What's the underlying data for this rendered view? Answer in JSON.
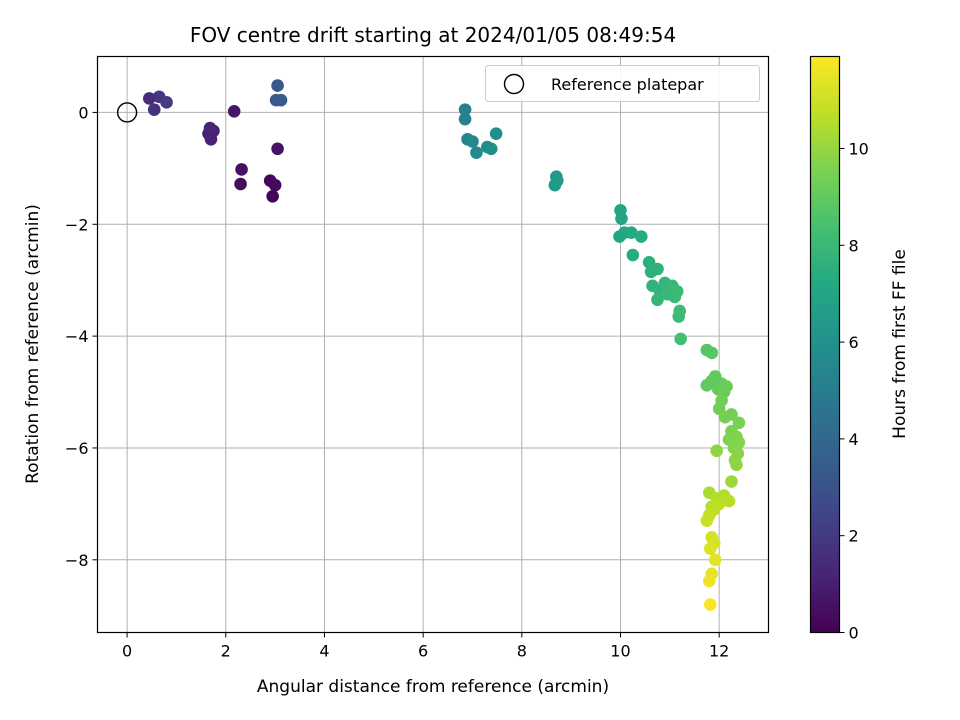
{
  "chart_data": {
    "type": "scatter",
    "title": "FOV centre drift starting at 2024/01/05 08:49:54",
    "xlabel": "Angular distance from reference (arcmin)",
    "ylabel": "Rotation from reference (arcmin)",
    "xlim": [
      -0.6,
      13.0
    ],
    "ylim": [
      -9.3,
      1.0
    ],
    "xticks": [
      "0",
      "2",
      "4",
      "6",
      "8",
      "10",
      "12"
    ],
    "yticks": [
      "0",
      "−2",
      "−4",
      "−6",
      "−8"
    ],
    "grid": true,
    "legend": {
      "position": "top-right",
      "label": "Reference platepar",
      "marker": "open-circle"
    },
    "reference_point": {
      "x": 0,
      "y": 0
    },
    "colorbar": {
      "label": "Hours from first FF file",
      "colormap": "viridis",
      "range": [
        0,
        11.9
      ],
      "ticks": [
        "0",
        "2",
        "4",
        "6",
        "8",
        "10"
      ]
    },
    "points": [
      {
        "x": 2.95,
        "y": -1.5,
        "h": 0.1
      },
      {
        "x": 2.9,
        "y": -1.22,
        "h": 0.2
      },
      {
        "x": 3.0,
        "y": -1.3,
        "h": 0.3
      },
      {
        "x": 2.3,
        "y": -1.28,
        "h": 0.4
      },
      {
        "x": 2.32,
        "y": -1.02,
        "h": 0.5
      },
      {
        "x": 3.05,
        "y": -0.65,
        "h": 0.6
      },
      {
        "x": 2.17,
        "y": 0.02,
        "h": 0.7
      },
      {
        "x": 1.65,
        "y": -0.38,
        "h": 0.9
      },
      {
        "x": 1.75,
        "y": -0.33,
        "h": 1.0
      },
      {
        "x": 1.7,
        "y": -0.48,
        "h": 1.1
      },
      {
        "x": 1.68,
        "y": -0.28,
        "h": 1.2
      },
      {
        "x": 0.45,
        "y": 0.25,
        "h": 1.5
      },
      {
        "x": 0.55,
        "y": 0.05,
        "h": 1.7
      },
      {
        "x": 0.65,
        "y": 0.28,
        "h": 1.9
      },
      {
        "x": 0.8,
        "y": 0.18,
        "h": 2.1
      },
      {
        "x": 3.05,
        "y": 0.48,
        "h": 3.2
      },
      {
        "x": 3.02,
        "y": 0.22,
        "h": 3.3
      },
      {
        "x": 3.12,
        "y": 0.22,
        "h": 3.4
      },
      {
        "x": 6.85,
        "y": 0.05,
        "h": 5.2
      },
      {
        "x": 6.85,
        "y": -0.12,
        "h": 5.3
      },
      {
        "x": 6.9,
        "y": -0.48,
        "h": 5.4
      },
      {
        "x": 7.0,
        "y": -0.52,
        "h": 5.5
      },
      {
        "x": 7.08,
        "y": -0.72,
        "h": 5.6
      },
      {
        "x": 7.3,
        "y": -0.62,
        "h": 5.7
      },
      {
        "x": 7.38,
        "y": -0.65,
        "h": 5.8
      },
      {
        "x": 7.48,
        "y": -0.38,
        "h": 5.9
      },
      {
        "x": 8.7,
        "y": -1.15,
        "h": 6.3
      },
      {
        "x": 8.67,
        "y": -1.3,
        "h": 6.4
      },
      {
        "x": 8.72,
        "y": -1.22,
        "h": 6.4
      },
      {
        "x": 10.0,
        "y": -1.75,
        "h": 7.0
      },
      {
        "x": 10.02,
        "y": -1.9,
        "h": 7.0
      },
      {
        "x": 9.98,
        "y": -2.22,
        "h": 7.1
      },
      {
        "x": 10.08,
        "y": -2.15,
        "h": 7.1
      },
      {
        "x": 10.22,
        "y": -2.15,
        "h": 7.2
      },
      {
        "x": 10.25,
        "y": -2.55,
        "h": 7.3
      },
      {
        "x": 10.42,
        "y": -2.22,
        "h": 7.3
      },
      {
        "x": 10.58,
        "y": -2.68,
        "h": 7.5
      },
      {
        "x": 10.62,
        "y": -2.85,
        "h": 7.6
      },
      {
        "x": 10.75,
        "y": -2.8,
        "h": 7.6
      },
      {
        "x": 10.65,
        "y": -3.1,
        "h": 7.7
      },
      {
        "x": 10.8,
        "y": -3.2,
        "h": 7.7
      },
      {
        "x": 10.75,
        "y": -3.35,
        "h": 7.8
      },
      {
        "x": 10.9,
        "y": -3.05,
        "h": 7.8
      },
      {
        "x": 10.95,
        "y": -3.25,
        "h": 7.9
      },
      {
        "x": 11.05,
        "y": -3.1,
        "h": 7.9
      },
      {
        "x": 11.1,
        "y": -3.3,
        "h": 8.0
      },
      {
        "x": 11.15,
        "y": -3.2,
        "h": 8.0
      },
      {
        "x": 11.2,
        "y": -3.55,
        "h": 8.1
      },
      {
        "x": 11.18,
        "y": -3.65,
        "h": 8.1
      },
      {
        "x": 11.22,
        "y": -4.05,
        "h": 8.3
      },
      {
        "x": 11.75,
        "y": -4.25,
        "h": 8.7
      },
      {
        "x": 11.85,
        "y": -4.3,
        "h": 8.8
      },
      {
        "x": 11.75,
        "y": -4.88,
        "h": 8.9
      },
      {
        "x": 11.85,
        "y": -4.8,
        "h": 9.0
      },
      {
        "x": 11.92,
        "y": -4.72,
        "h": 9.0
      },
      {
        "x": 11.98,
        "y": -4.95,
        "h": 9.1
      },
      {
        "x": 12.05,
        "y": -4.85,
        "h": 9.1
      },
      {
        "x": 12.1,
        "y": -5.0,
        "h": 9.2
      },
      {
        "x": 12.15,
        "y": -4.9,
        "h": 9.2
      },
      {
        "x": 12.05,
        "y": -5.15,
        "h": 9.3
      },
      {
        "x": 12.0,
        "y": -5.3,
        "h": 9.3
      },
      {
        "x": 12.12,
        "y": -5.45,
        "h": 9.4
      },
      {
        "x": 12.25,
        "y": -5.4,
        "h": 9.4
      },
      {
        "x": 12.4,
        "y": -5.55,
        "h": 9.5
      },
      {
        "x": 12.25,
        "y": -5.7,
        "h": 9.5
      },
      {
        "x": 12.2,
        "y": -5.85,
        "h": 9.6
      },
      {
        "x": 12.35,
        "y": -5.8,
        "h": 9.6
      },
      {
        "x": 12.4,
        "y": -5.9,
        "h": 9.7
      },
      {
        "x": 12.3,
        "y": -6.0,
        "h": 9.7
      },
      {
        "x": 12.38,
        "y": -6.1,
        "h": 9.8
      },
      {
        "x": 12.32,
        "y": -6.22,
        "h": 9.8
      },
      {
        "x": 12.35,
        "y": -6.3,
        "h": 9.9
      },
      {
        "x": 11.95,
        "y": -6.05,
        "h": 9.9
      },
      {
        "x": 12.25,
        "y": -6.6,
        "h": 10.1
      },
      {
        "x": 11.8,
        "y": -6.8,
        "h": 10.4
      },
      {
        "x": 11.95,
        "y": -6.9,
        "h": 10.5
      },
      {
        "x": 12.1,
        "y": -6.85,
        "h": 10.5
      },
      {
        "x": 12.2,
        "y": -6.95,
        "h": 10.6
      },
      {
        "x": 11.85,
        "y": -7.05,
        "h": 10.6
      },
      {
        "x": 12.0,
        "y": -7.0,
        "h": 10.7
      },
      {
        "x": 11.9,
        "y": -7.1,
        "h": 10.7
      },
      {
        "x": 11.8,
        "y": -7.2,
        "h": 10.8
      },
      {
        "x": 11.75,
        "y": -7.3,
        "h": 10.9
      },
      {
        "x": 11.85,
        "y": -7.6,
        "h": 11.1
      },
      {
        "x": 11.9,
        "y": -7.7,
        "h": 11.2
      },
      {
        "x": 11.82,
        "y": -7.8,
        "h": 11.3
      },
      {
        "x": 11.92,
        "y": -8.0,
        "h": 11.4
      },
      {
        "x": 11.85,
        "y": -8.25,
        "h": 11.5
      },
      {
        "x": 11.8,
        "y": -8.38,
        "h": 11.6
      },
      {
        "x": 11.82,
        "y": -8.8,
        "h": 11.8
      }
    ]
  }
}
